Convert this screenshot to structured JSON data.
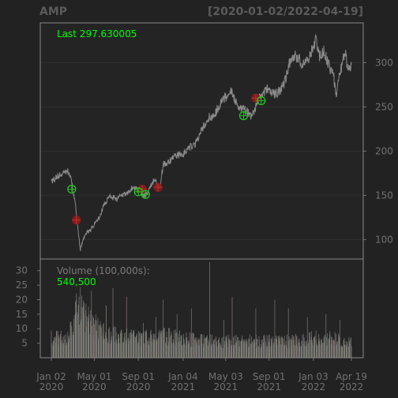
{
  "header": {
    "symbol": "AMP",
    "date_range": "[2020-01-02/2022-04-19]"
  },
  "colors": {
    "background": "#222222",
    "panel": "#242424",
    "frame": "#888888",
    "grid": "#2f2f2f",
    "price_line": "#8a8a8a",
    "buy": "#1ec81e",
    "sell": "#8b1a1a",
    "last_text": "#00ff00",
    "volume_label": "#7a7a7a",
    "tick_text": "#717171",
    "title_text": "#5b5b5b"
  },
  "chart_data": [
    {
      "type": "line",
      "title": "AMP",
      "subtitle": "[2020-01-02/2022-04-19]",
      "annotation": "Last 297.630005",
      "x_range": [
        "2020-01-02",
        "2022-04-19"
      ],
      "ylim": [
        78,
        345
      ],
      "y_ticks": [
        100,
        150,
        200,
        250,
        300
      ],
      "x_ticks": [
        {
          "date": "2020-01-02",
          "line1": "Jan 02",
          "line2": "2020"
        },
        {
          "date": "2020-05-01",
          "line1": "May 01",
          "line2": "2020"
        },
        {
          "date": "2020-09-01",
          "line1": "Sep 01",
          "line2": "2020"
        },
        {
          "date": "2021-01-04",
          "line1": "Jan 04",
          "line2": "2021"
        },
        {
          "date": "2021-05-03",
          "line1": "May 03",
          "line2": "2021"
        },
        {
          "date": "2021-09-01",
          "line1": "Sep 01",
          "line2": "2021"
        },
        {
          "date": "2022-01-03",
          "line1": "Jan 03",
          "line2": "2022"
        },
        {
          "date": "2022-04-19",
          "line1": "Apr 19",
          "line2": "2022"
        }
      ],
      "grid": true,
      "series": [
        {
          "values": [
            [
              "2020-01-02",
              166
            ],
            [
              "2020-01-15",
              170
            ],
            [
              "2020-02-01",
              174
            ],
            [
              "2020-02-15",
              178
            ],
            [
              "2020-02-24",
              172
            ],
            [
              "2020-03-02",
              158
            ],
            [
              "2020-03-09",
              140
            ],
            [
              "2020-03-16",
              112
            ],
            [
              "2020-03-23",
              88
            ],
            [
              "2020-03-30",
              100
            ],
            [
              "2020-04-10",
              108
            ],
            [
              "2020-04-20",
              110
            ],
            [
              "2020-05-01",
              117
            ],
            [
              "2020-05-15",
              125
            ],
            [
              "2020-06-01",
              142
            ],
            [
              "2020-06-15",
              150
            ],
            [
              "2020-07-01",
              145
            ],
            [
              "2020-07-15",
              150
            ],
            [
              "2020-08-01",
              153
            ],
            [
              "2020-08-15",
              158
            ],
            [
              "2020-09-01",
              156
            ],
            [
              "2020-09-10",
              153
            ],
            [
              "2020-09-21",
              149
            ],
            [
              "2020-10-01",
              157
            ],
            [
              "2020-10-15",
              168
            ],
            [
              "2020-10-30",
              158
            ],
            [
              "2020-11-10",
              185
            ],
            [
              "2020-12-01",
              190
            ],
            [
              "2020-12-15",
              196
            ],
            [
              "2021-01-04",
              196
            ],
            [
              "2021-01-20",
              205
            ],
            [
              "2021-02-01",
              205
            ],
            [
              "2021-02-15",
              215
            ],
            [
              "2021-03-01",
              228
            ],
            [
              "2021-03-15",
              238
            ],
            [
              "2021-04-01",
              240
            ],
            [
              "2021-04-15",
              252
            ],
            [
              "2021-05-03",
              262
            ],
            [
              "2021-05-17",
              268
            ],
            [
              "2021-06-01",
              255
            ],
            [
              "2021-06-15",
              248
            ],
            [
              "2021-07-01",
              245
            ],
            [
              "2021-07-15",
              238
            ],
            [
              "2021-08-01",
              258
            ],
            [
              "2021-08-15",
              266
            ],
            [
              "2021-09-01",
              272
            ],
            [
              "2021-09-15",
              265
            ],
            [
              "2021-10-01",
              268
            ],
            [
              "2021-10-15",
              278
            ],
            [
              "2021-11-01",
              305
            ],
            [
              "2021-11-15",
              308
            ],
            [
              "2021-12-01",
              300
            ],
            [
              "2021-12-15",
              302
            ],
            [
              "2022-01-03",
              317
            ],
            [
              "2022-01-10",
              328
            ],
            [
              "2022-01-20",
              308
            ],
            [
              "2022-02-01",
              313
            ],
            [
              "2022-02-10",
              302
            ],
            [
              "2022-02-20",
              292
            ],
            [
              "2022-03-01",
              285
            ],
            [
              "2022-03-07",
              262
            ],
            [
              "2022-03-15",
              282
            ],
            [
              "2022-03-25",
              300
            ],
            [
              "2022-04-01",
              312
            ],
            [
              "2022-04-10",
              293
            ],
            [
              "2022-04-19",
              297.63
            ]
          ]
        },
        {
          "name": "buy",
          "marker": "circle-plus",
          "values": [
            [
              "2020-02-28",
              157
            ],
            [
              "2020-09-01",
              154
            ],
            [
              "2020-09-21",
              151
            ],
            [
              "2021-06-22",
              240
            ],
            [
              "2021-08-10",
              257
            ]
          ]
        },
        {
          "name": "sell",
          "marker": "circle-plus",
          "values": [
            [
              "2020-03-12",
              122
            ],
            [
              "2020-09-12",
              157
            ],
            [
              "2020-10-26",
              159
            ],
            [
              "2021-07-26",
              260
            ]
          ]
        }
      ]
    },
    {
      "type": "bar",
      "annotation_label": "Volume (100,000s):",
      "annotation_value": "540,500",
      "ylim": [
        0,
        34
      ],
      "y_ticks": [
        5,
        10,
        15,
        20,
        25,
        30
      ],
      "volume_profile": [
        [
          "2020-01-02",
          7
        ],
        [
          "2020-02-20",
          8
        ],
        [
          "2020-03-05",
          13
        ],
        [
          "2020-03-12",
          18
        ],
        [
          "2020-03-20",
          20
        ],
        [
          "2020-04-10",
          14
        ],
        [
          "2020-05-01",
          11
        ],
        [
          "2020-06-01",
          9
        ],
        [
          "2020-07-01",
          8
        ],
        [
          "2020-09-01",
          7
        ],
        [
          "2020-11-01",
          8
        ],
        [
          "2021-01-04",
          7
        ],
        [
          "2021-03-01",
          6
        ],
        [
          "2021-05-03",
          6
        ],
        [
          "2021-07-01",
          6
        ],
        [
          "2021-09-01",
          6
        ],
        [
          "2021-11-01",
          6
        ],
        [
          "2022-01-03",
          7
        ],
        [
          "2022-03-01",
          7
        ],
        [
          "2022-04-19",
          6
        ]
      ],
      "volume_spikes": [
        [
          "2020-04-23",
          23
        ],
        [
          "2020-05-05",
          15
        ],
        [
          "2020-06-03",
          18
        ],
        [
          "2020-06-22",
          24
        ],
        [
          "2020-07-30",
          21
        ],
        [
          "2020-09-15",
          12
        ],
        [
          "2020-10-20",
          14
        ],
        [
          "2020-11-09",
          20
        ],
        [
          "2020-12-18",
          15
        ],
        [
          "2021-01-27",
          17
        ],
        [
          "2021-03-19",
          33
        ],
        [
          "2021-04-28",
          13
        ],
        [
          "2021-05-21",
          21
        ],
        [
          "2021-07-26",
          17
        ],
        [
          "2021-09-17",
          20
        ],
        [
          "2021-10-25",
          17
        ],
        [
          "2021-12-17",
          14
        ],
        [
          "2022-02-07",
          15
        ],
        [
          "2022-03-18",
          13
        ]
      ]
    }
  ]
}
